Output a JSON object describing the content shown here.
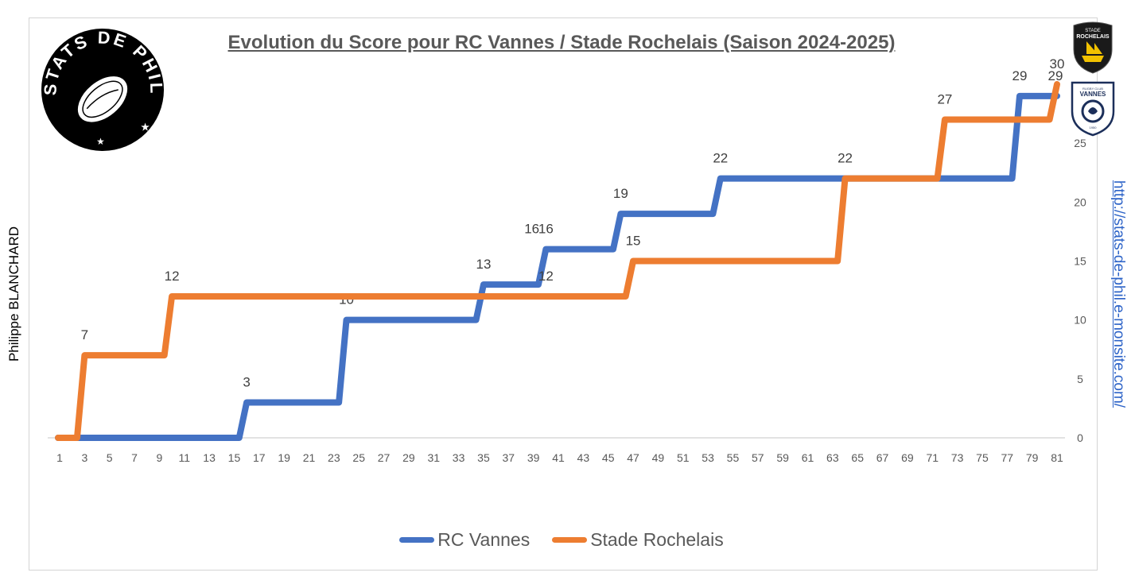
{
  "title": "Evolution du Score pour RC Vannes / Stade Rochelais (Saison 2024-2025)",
  "author": "Philippe BLANCHARD",
  "url": "http://stats-de-phil.e-monsite.com/",
  "logo": {
    "text": "STATS DE PHIL",
    "icon": "rugby-ball-icon"
  },
  "team_badges": [
    {
      "name": "Stade Rochelais",
      "lines": [
        "STADE",
        "ROCHELAIS"
      ],
      "icon": "ship-icon",
      "color": "#1a1a1a",
      "accent": "#f2c200"
    },
    {
      "name": "RC Vannes",
      "lines": [
        "RUGBY CLUB",
        "VANNES",
        "1950"
      ],
      "icon": "ermine-icon",
      "color": "#ffffff",
      "accent": "#1c2f5a"
    }
  ],
  "chart_data": {
    "type": "line",
    "step": true,
    "x_label": "",
    "y_label": "",
    "xlim": [
      1,
      81
    ],
    "ylim": [
      0,
      30
    ],
    "x_ticks": [
      1,
      3,
      5,
      7,
      9,
      11,
      13,
      15,
      17,
      19,
      21,
      23,
      25,
      27,
      29,
      31,
      33,
      35,
      37,
      39,
      41,
      43,
      45,
      47,
      49,
      51,
      53,
      55,
      57,
      59,
      61,
      63,
      65,
      67,
      69,
      71,
      73,
      75,
      77,
      79,
      81
    ],
    "y_ticks": [
      0,
      5,
      10,
      15,
      20,
      25
    ],
    "y_axis_side": "right",
    "legend_position": "bottom",
    "grid": false,
    "series": [
      {
        "name": "RC Vannes",
        "color": "#4472c4",
        "steps": [
          [
            1,
            0
          ],
          [
            16,
            3
          ],
          [
            24,
            10
          ],
          [
            35,
            13
          ],
          [
            40,
            16
          ],
          [
            46,
            19
          ],
          [
            54,
            22
          ],
          [
            78,
            29
          ],
          [
            81,
            29
          ]
        ],
        "labels": [
          {
            "x": 16,
            "y": 3,
            "text": "3"
          },
          {
            "x": 24,
            "y": 10,
            "text": "10"
          },
          {
            "x": 35,
            "y": 13,
            "text": "13"
          },
          {
            "x": 40,
            "y": 16,
            "text": "16"
          },
          {
            "x": 46,
            "y": 19,
            "text": "19"
          },
          {
            "x": 54,
            "y": 22,
            "text": "22"
          },
          {
            "x": 78,
            "y": 29,
            "text": "29"
          }
        ]
      },
      {
        "name": "Stade Rochelais",
        "color": "#ed7d31",
        "steps": [
          [
            1,
            0
          ],
          [
            3,
            7
          ],
          [
            10,
            12
          ],
          [
            47,
            15
          ],
          [
            64,
            22
          ],
          [
            72,
            27
          ],
          [
            81,
            30
          ]
        ],
        "labels": [
          {
            "x": 3,
            "y": 7,
            "text": "7"
          },
          {
            "x": 10,
            "y": 12,
            "text": "12"
          },
          {
            "x": 40,
            "y": 12,
            "text": "12"
          },
          {
            "x": 47,
            "y": 15,
            "text": "15"
          },
          {
            "x": 64,
            "y": 22,
            "text": "22"
          },
          {
            "x": 72,
            "y": 27,
            "text": "27"
          },
          {
            "x": 81,
            "y": 30,
            "text": "30"
          }
        ]
      }
    ],
    "extra_labels": [
      {
        "x": 39,
        "y": 16,
        "text": "16"
      },
      {
        "x": 81,
        "y": 29,
        "text": "29"
      }
    ]
  }
}
